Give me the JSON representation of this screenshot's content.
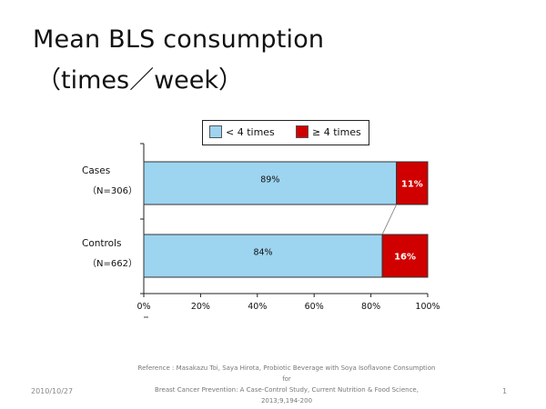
{
  "slide": {
    "title_line1": "Mean BLS consumption",
    "title_line2": "（times／week）",
    "reference_line1": "Reference : Masakazu Toi, Saya Hirota, Probiotic Beverage with Soya Isoflavone Consumption for",
    "reference_line2": "Breast Cancer Prevention: A Case-Control Study, Current Nutrition & Food Science, 2013;9,194-200",
    "footer_date": "2010/10/27",
    "footer_page": "1"
  },
  "colors": {
    "less_than_4": "#9dd4f0",
    "ge_4": "#d00000"
  },
  "chart_data": {
    "type": "bar",
    "orientation": "horizontal",
    "stacked": true,
    "categories": [
      {
        "name": "Cases",
        "n": "（N=306）"
      },
      {
        "name": "Controls",
        "n": "（N=662）"
      }
    ],
    "series": [
      {
        "name": "< 4 times",
        "values": [
          89,
          84
        ],
        "labels": [
          "89%",
          "84%"
        ]
      },
      {
        "name": "≥ 4 times",
        "values": [
          11,
          16
        ],
        "labels": [
          "11%",
          "16%"
        ]
      }
    ],
    "x_ticks": [
      "0%",
      "20%",
      "40%",
      "60%",
      "80%",
      "100%"
    ],
    "xlim": [
      0,
      100
    ],
    "legend_position": "top"
  }
}
